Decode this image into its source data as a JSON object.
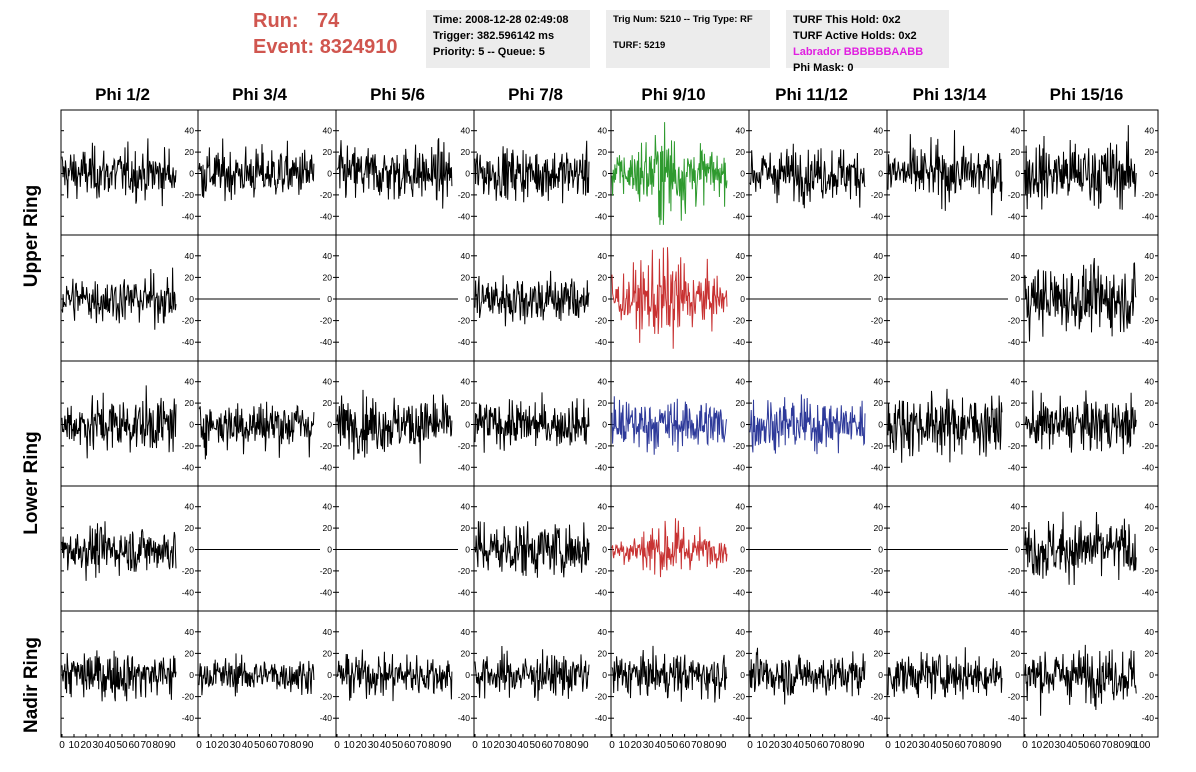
{
  "run": {
    "run_label": "Run:",
    "run_value": "74",
    "event_label": "Event:",
    "event_value": "8324910"
  },
  "info_panel_1": {
    "time": "Time: 2008-12-28 02:49:08",
    "trigger": "Trigger: 382.596142 ms",
    "priority": "Priority: 5 -- Queue: 5"
  },
  "info_panel_2": {
    "trig": "Trig Num: 5210 -- Trig Type: RF",
    "turf": "TURF: 5219"
  },
  "info_panel_3": {
    "hold": "TURF This Hold: 0x2",
    "active": "TURF Active Holds: 0x2",
    "labrador": "Labrador BBBBBBAABB",
    "phimask": "Phi Mask: 0"
  },
  "colors": {
    "run_text": "#d0564f",
    "labrador_text": "#e020e0",
    "trace_default": "#000000",
    "trace_green": "#2e9a2e",
    "trace_red": "#c83232",
    "trace_blue": "#2e3a9a",
    "panel_bg": "#ececec"
  },
  "chart_data": {
    "type": "line",
    "title": "",
    "xlabel": "",
    "ylabel": "",
    "columns": [
      "Phi 1/2",
      "Phi 3/4",
      "Phi 5/6",
      "Phi 7/8",
      "Phi 9/10",
      "Phi 11/12",
      "Phi 13/14",
      "Phi 15/16"
    ],
    "rows": [
      "Upper Ring",
      "Upper Ring",
      "Lower Ring",
      "Lower Ring",
      "Nadir Ring"
    ],
    "row_labels": [
      "Upper Ring",
      "Lower Ring",
      "Nadir Ring"
    ],
    "xlim": [
      0,
      100
    ],
    "ylim": [
      -50,
      50
    ],
    "x_ticks": [
      "0",
      "10",
      "20",
      "30",
      "40",
      "50",
      "60",
      "70",
      "80",
      "90",
      "100"
    ],
    "y_ticks": [
      "-40",
      "-20",
      "0",
      "20",
      "40"
    ],
    "grid": false,
    "traces": [
      [
        "wave:12",
        "wave:12",
        "wave:13",
        "wave:12",
        "wave-green:16",
        "wave:12",
        "wave:13",
        "wave:15"
      ],
      [
        "wave:11",
        "flat",
        "flat",
        "wave:12",
        "wave-red:16",
        "flat",
        "flat",
        "wave:15"
      ],
      [
        "wave:13",
        "wave:12",
        "wave:13",
        "wave:11",
        "wave-blue:12",
        "wave-blue:12",
        "wave:14",
        "wave:12"
      ],
      [
        "wave:11",
        "flat",
        "flat",
        "wave:13",
        "wave-red:10",
        "flat",
        "flat",
        "wave:14"
      ],
      [
        "wave:11",
        "wave:8",
        "wave:10",
        "wave:10",
        "wave:10",
        "wave:10",
        "wave:10",
        "wave:12"
      ]
    ]
  }
}
